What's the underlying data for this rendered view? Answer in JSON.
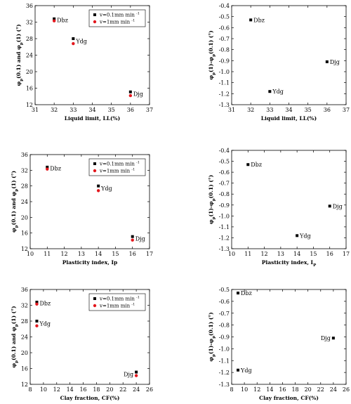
{
  "colors": {
    "black_series": "#000000",
    "red_series": "#e3171d",
    "axis": "#000000"
  },
  "legend_labels": {
    "black": [
      "v=0.1mm min",
      "-1"
    ],
    "red": [
      "v=1mm min",
      "-1"
    ]
  },
  "chart_data": [
    {
      "type": "scatter",
      "xlabel": "Liquid limit, LL(%)",
      "ylabel_parts": [
        "φ",
        "p",
        "(0.1) and φ",
        "p",
        "(1) (°)"
      ],
      "xlim": [
        31,
        37
      ],
      "ylim": [
        12,
        36
      ],
      "xticks": [
        31,
        32,
        33,
        34,
        35,
        36,
        37
      ],
      "yticks": [
        12,
        16,
        20,
        24,
        28,
        32,
        36
      ],
      "legend": true,
      "legend_position": "top-right",
      "series": [
        {
          "legend_key": "black",
          "color": "black",
          "x": [
            32,
            33,
            36
          ],
          "y": [
            32.8,
            28.0,
            15.1
          ]
        },
        {
          "legend_key": "red",
          "color": "red",
          "x": [
            32,
            33,
            36
          ],
          "y": [
            32.3,
            26.8,
            14.2
          ]
        }
      ],
      "point_labels": [
        {
          "text": "Dbz",
          "x": 32,
          "y": 32.5,
          "side": "right"
        },
        {
          "text": "Ydg",
          "x": 33,
          "y": 27.4,
          "side": "right"
        },
        {
          "text": "Djg",
          "x": 36,
          "y": 14.6,
          "side": "right"
        }
      ]
    },
    {
      "type": "scatter",
      "xlabel": "Liquid limit, LL(%)",
      "ylabel_parts": [
        "φ",
        "p",
        "(1)-φ",
        "p",
        "(0.1) (°)"
      ],
      "xlim": [
        31,
        37
      ],
      "ylim": [
        -1.3,
        -0.4
      ],
      "xticks": [
        31,
        32,
        33,
        34,
        35,
        36,
        37
      ],
      "yticks": [
        -1.3,
        -1.2,
        -1.1,
        -1.0,
        -0.9,
        -0.8,
        -0.7,
        -0.6,
        -0.5,
        -0.4
      ],
      "legend": false,
      "series": [
        {
          "color": "black",
          "x": [
            32,
            33,
            36
          ],
          "y": [
            -0.53,
            -1.18,
            -0.91
          ]
        }
      ],
      "point_labels": [
        {
          "text": "Dbz",
          "x": 32,
          "y": -0.53,
          "side": "right"
        },
        {
          "text": "Ydg",
          "x": 33,
          "y": -1.18,
          "side": "right"
        },
        {
          "text": "Djg",
          "x": 36,
          "y": -0.91,
          "side": "right"
        }
      ]
    },
    {
      "type": "scatter",
      "xlabel": "Plasticity index, Ip",
      "ylabel_parts": [
        "φ",
        "p",
        "(0.1) and φ",
        "p",
        "(1) (°)"
      ],
      "xlim": [
        10,
        17
      ],
      "ylim": [
        12,
        36
      ],
      "xticks": [
        10,
        11,
        12,
        13,
        14,
        15,
        16,
        17
      ],
      "yticks": [
        12,
        16,
        20,
        24,
        28,
        32,
        36
      ],
      "legend": true,
      "legend_position": "top-right",
      "series": [
        {
          "legend_key": "black",
          "color": "black",
          "x": [
            11,
            14,
            16
          ],
          "y": [
            32.8,
            28.0,
            15.1
          ]
        },
        {
          "legend_key": "red",
          "color": "red",
          "x": [
            11,
            14,
            16
          ],
          "y": [
            32.3,
            26.8,
            14.2
          ]
        }
      ],
      "point_labels": [
        {
          "text": "Dbz",
          "x": 11,
          "y": 32.5,
          "side": "right"
        },
        {
          "text": "Ydg",
          "x": 14,
          "y": 27.4,
          "side": "right"
        },
        {
          "text": "Djg",
          "x": 16,
          "y": 14.6,
          "side": "right"
        }
      ]
    },
    {
      "type": "scatter",
      "xlabel_parts": [
        "Plasticity index, I",
        "P"
      ],
      "ylabel_parts": [
        "φ",
        "p",
        "(1)-φ",
        "p",
        "(0.1) (°)"
      ],
      "xlim": [
        10,
        17
      ],
      "ylim": [
        -1.3,
        -0.4
      ],
      "xticks": [
        10,
        11,
        12,
        13,
        14,
        15,
        16,
        17
      ],
      "yticks": [
        -1.3,
        -1.2,
        -1.1,
        -1.0,
        -0.9,
        -0.8,
        -0.7,
        -0.6,
        -0.5,
        -0.4
      ],
      "legend": false,
      "series": [
        {
          "color": "black",
          "x": [
            11,
            14,
            16
          ],
          "y": [
            -0.53,
            -1.18,
            -0.91
          ]
        }
      ],
      "point_labels": [
        {
          "text": "Dbz",
          "x": 11,
          "y": -0.53,
          "side": "right"
        },
        {
          "text": "Ydg",
          "x": 14,
          "y": -1.18,
          "side": "right"
        },
        {
          "text": "Djg",
          "x": 16,
          "y": -0.91,
          "side": "right"
        }
      ]
    },
    {
      "type": "scatter",
      "xlabel": "Clay fraction, CF(%)",
      "ylabel_parts": [
        "φ",
        "p",
        "(0.1) and φ",
        "p",
        "(1) (°)"
      ],
      "xlim": [
        8,
        26
      ],
      "ylim": [
        12,
        36
      ],
      "xticks": [
        8,
        10,
        12,
        14,
        16,
        18,
        20,
        22,
        24,
        26
      ],
      "yticks": [
        12,
        16,
        20,
        24,
        28,
        32,
        36
      ],
      "legend": true,
      "legend_position": "top-right",
      "series": [
        {
          "legend_key": "black",
          "color": "black",
          "x": [
            9,
            9,
            24
          ],
          "y": [
            32.8,
            28.0,
            15.1
          ]
        },
        {
          "legend_key": "red",
          "color": "red",
          "x": [
            9,
            9,
            24
          ],
          "y": [
            32.3,
            26.8,
            14.2
          ]
        }
      ],
      "point_labels": [
        {
          "text": "Dbz",
          "x": 9,
          "y": 32.5,
          "side": "right"
        },
        {
          "text": "Ydg",
          "x": 9,
          "y": 27.4,
          "side": "right"
        },
        {
          "text": "Djg",
          "x": 24,
          "y": 14.6,
          "side": "left"
        }
      ]
    },
    {
      "type": "scatter",
      "xlabel": "Clay fraction, CF(%)",
      "ylabel_parts": [
        "φ",
        "p",
        "(1)-φ",
        "p",
        "(0.1) (°)"
      ],
      "xlim": [
        8,
        26
      ],
      "ylim": [
        -1.3,
        -0.5
      ],
      "xticks": [
        8,
        10,
        12,
        14,
        16,
        18,
        20,
        22,
        24,
        26
      ],
      "yticks": [
        -1.3,
        -1.2,
        -1.1,
        -1.0,
        -0.9,
        -0.8,
        -0.7,
        -0.6,
        -0.5
      ],
      "legend": false,
      "series": [
        {
          "color": "black",
          "x": [
            9,
            9,
            24
          ],
          "y": [
            -0.53,
            -1.18,
            -0.91
          ]
        }
      ],
      "point_labels": [
        {
          "text": "Dbz",
          "x": 9,
          "y": -0.53,
          "side": "right"
        },
        {
          "text": "Ydg",
          "x": 9,
          "y": -1.18,
          "side": "right"
        },
        {
          "text": "Djg",
          "x": 24,
          "y": -0.91,
          "side": "left"
        }
      ]
    }
  ]
}
